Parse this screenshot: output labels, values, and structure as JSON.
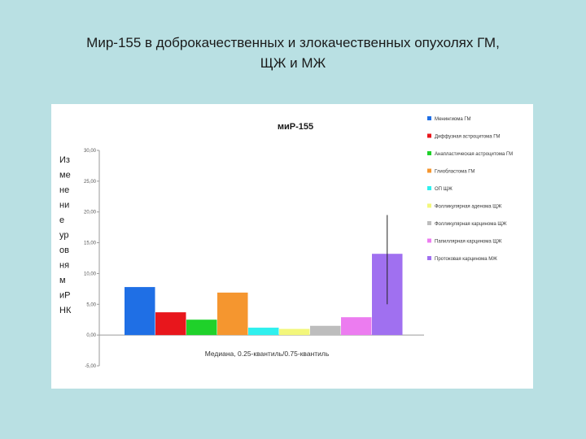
{
  "slide": {
    "title_line1": "Мир-155 в доброкачественных и злокачественных опухолях ГМ,",
    "title_line2": "ЩЖ и МЖ"
  },
  "chart_data": {
    "type": "bar",
    "title": "миР-155",
    "xlabel": "Медиана, 0.25-квантиль/0.75-квантиль",
    "ylabel": "Изменение уровня миРНК",
    "ylim": [
      -5,
      30
    ],
    "yticks": [
      "-5,00",
      "0,00",
      "5,00",
      "10,00",
      "15,00",
      "20,00",
      "25,00",
      "30,00"
    ],
    "grid": false,
    "legend_position": "right",
    "series": [
      {
        "name": "Менингиома ГМ",
        "value": 7.8,
        "color": "#1f6fe5"
      },
      {
        "name": "Диффузная астроцитома ГМ",
        "value": 3.7,
        "color": "#e8161c"
      },
      {
        "name": "Анапластическая астроцитома ГМ",
        "value": 2.5,
        "color": "#1fd12a"
      },
      {
        "name": "Глиобластома ГМ",
        "value": 6.9,
        "color": "#f5962f"
      },
      {
        "name": "ОП ЩЖ",
        "value": 1.2,
        "color": "#2ff0ee"
      },
      {
        "name": "Фолликулярная аденома ЩЖ",
        "value": 1.0,
        "color": "#f3f77b"
      },
      {
        "name": "Фолликулярная карцинома ЩЖ",
        "value": 1.5,
        "color": "#bdbdbd"
      },
      {
        "name": "Папиллярная карцинома ЩЖ",
        "value": 2.9,
        "color": "#ec7cf0"
      },
      {
        "name": "Протоковая карцинома МЖ",
        "value": 13.2,
        "color": "#a070f0",
        "error_low": 5.0,
        "error_high": 19.5
      }
    ]
  }
}
